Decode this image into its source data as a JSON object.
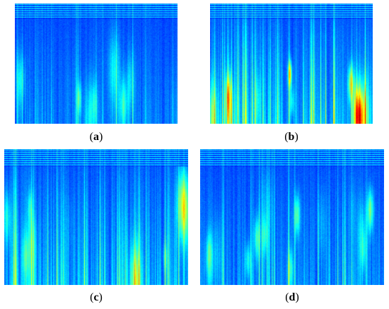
{
  "figure": {
    "panels": [
      {
        "id": "a",
        "caption_open": "(",
        "caption_letter": "a",
        "caption_close": ")",
        "intensity": 0.55,
        "seed": 11
      },
      {
        "id": "b",
        "caption_open": "(",
        "caption_letter": "b",
        "caption_close": ")",
        "intensity": 0.95,
        "seed": 23
      },
      {
        "id": "c",
        "caption_open": "(",
        "caption_letter": "c",
        "caption_close": ")",
        "intensity": 0.85,
        "seed": 37
      },
      {
        "id": "d",
        "caption_open": "(",
        "caption_letter": "d",
        "caption_close": ")",
        "intensity": 0.65,
        "seed": 51
      }
    ]
  }
}
